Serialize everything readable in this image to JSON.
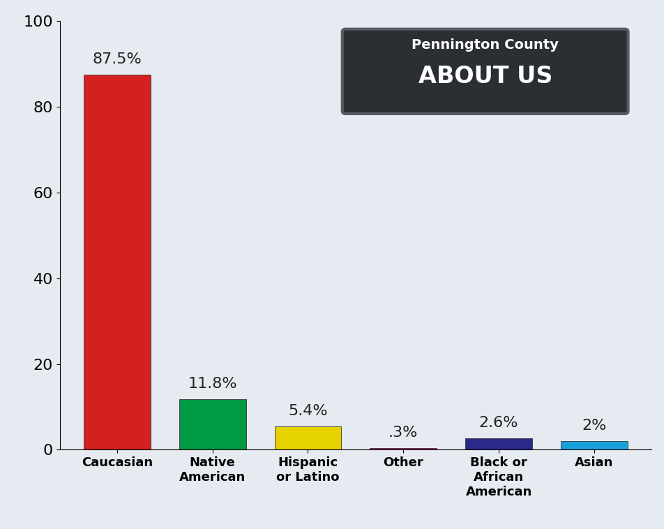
{
  "chart_data": {
    "type": "bar",
    "title": "Pennington County",
    "subtitle": "ABOUT US",
    "categories": [
      "Caucasian",
      "Native American",
      "Hispanic or Latino",
      "Other",
      "Black or African American",
      "Asian"
    ],
    "values": [
      87.5,
      11.8,
      5.4,
      0.3,
      2.6,
      2
    ],
    "value_labels": [
      "87.5%",
      "11.8%",
      "5.4%",
      ".3%",
      "2.6%",
      "2%"
    ],
    "data_labels": true,
    "colors": [
      "#d42020",
      "#009944",
      "#e6d200",
      "#d4138a",
      "#2a2a8a",
      "#1aa0d8"
    ],
    "ylim": [
      0,
      100
    ],
    "yticks": [
      0,
      20,
      40,
      60,
      80,
      100
    ],
    "grid": false
  }
}
